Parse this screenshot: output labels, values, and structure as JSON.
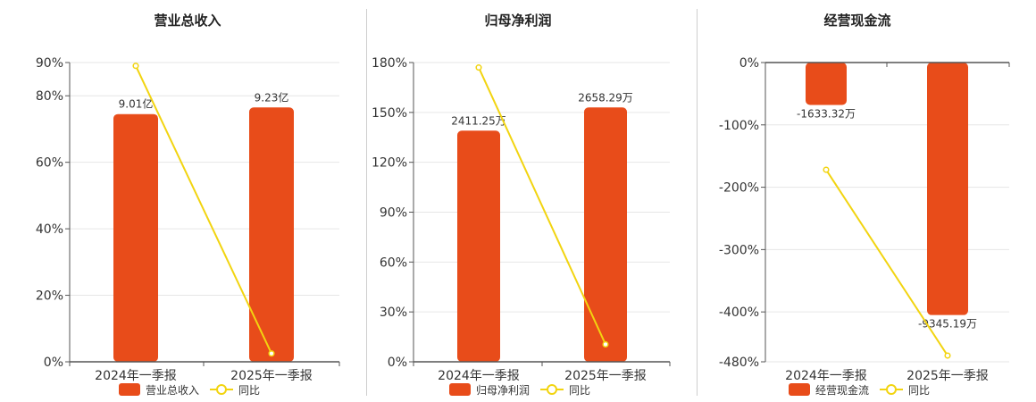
{
  "colors": {
    "bar": "#E84C1A",
    "line": "#F2D410",
    "grid": "#e6e6e6",
    "axis": "#555555",
    "text": "#333333",
    "title": "#222222"
  },
  "chart_data": [
    {
      "type": "bar",
      "title": "营业总收入",
      "categories": [
        "2024年一季报",
        "2025年一季报"
      ],
      "series": [
        {
          "name": "营业总收入",
          "kind": "bar",
          "values": [
            9.01,
            9.23
          ],
          "value_labels": [
            "9.01亿",
            "9.23亿"
          ]
        },
        {
          "name": "同比",
          "kind": "line",
          "values": [
            0.89,
            0.025
          ],
          "unit": "fraction"
        }
      ],
      "y_ticks": [
        "0%",
        "20%",
        "40%",
        "60%",
        "80%",
        "90%"
      ],
      "y_tick_values": [
        0,
        0.2,
        0.4,
        0.6,
        0.8,
        0.9
      ],
      "ylim": [
        0,
        0.9
      ],
      "bar_as_fraction": [
        0.745,
        0.765
      ],
      "legend": [
        {
          "label": "营业总收入",
          "kind": "bar"
        },
        {
          "label": "同比",
          "kind": "line"
        }
      ],
      "legend_position": "bottom",
      "grid": true
    },
    {
      "type": "bar",
      "title": "归母净利润",
      "categories": [
        "2024年一季报",
        "2025年一季报"
      ],
      "series": [
        {
          "name": "归母净利润",
          "kind": "bar",
          "values": [
            2411.25,
            2658.29
          ],
          "value_labels": [
            "2411.25万",
            "2658.29万"
          ]
        },
        {
          "name": "同比",
          "kind": "line",
          "values": [
            1.77,
            0.105
          ],
          "unit": "fraction"
        }
      ],
      "y_ticks": [
        "0%",
        "30%",
        "60%",
        "90%",
        "120%",
        "150%",
        "180%"
      ],
      "y_tick_values": [
        0,
        0.3,
        0.6,
        0.9,
        1.2,
        1.5,
        1.8
      ],
      "ylim": [
        0,
        1.8
      ],
      "bar_as_fraction": [
        1.39,
        1.53
      ],
      "legend": [
        {
          "label": "归母净利润",
          "kind": "bar"
        },
        {
          "label": "同比",
          "kind": "line"
        }
      ],
      "legend_position": "bottom",
      "grid": true
    },
    {
      "type": "bar",
      "title": "经营现金流",
      "categories": [
        "2024年一季报",
        "2025年一季报"
      ],
      "series": [
        {
          "name": "经营现金流",
          "kind": "bar",
          "values": [
            -1633.32,
            -9345.19
          ],
          "value_labels": [
            "-1633.32万",
            "-9345.19万"
          ]
        },
        {
          "name": "同比",
          "kind": "line",
          "values": [
            -1.72,
            -4.7
          ],
          "unit": "fraction"
        }
      ],
      "y_ticks": [
        "0%",
        "-100%",
        "-200%",
        "-300%",
        "-400%",
        "-480%"
      ],
      "y_tick_values": [
        0,
        -1.0,
        -2.0,
        -3.0,
        -4.0,
        -4.8
      ],
      "ylim": [
        -4.8,
        0
      ],
      "bar_as_fraction": [
        -0.68,
        -4.05
      ],
      "legend": [
        {
          "label": "经营现金流",
          "kind": "bar"
        },
        {
          "label": "同比",
          "kind": "line"
        }
      ],
      "legend_position": "bottom",
      "grid": true
    }
  ]
}
